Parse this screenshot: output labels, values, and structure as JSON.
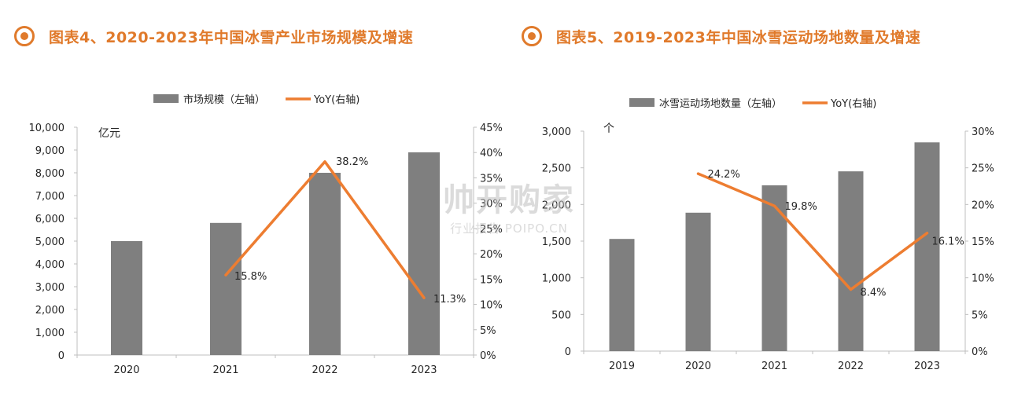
{
  "colors": {
    "accent": "#E07A2B",
    "bar": "#7F7F7F",
    "line": "#ED7D31",
    "axis": "#BFBFBF",
    "text": "#262626"
  },
  "watermark": {
    "brand": "帅开购家",
    "sub": "行业报告 POIPO.CN"
  },
  "chart_data": [
    {
      "type": "bar",
      "title": "图表4、2020-2023年中国冰雪产业市场规模及增速",
      "unit_label": "亿元",
      "categories": [
        "2020",
        "2021",
        "2022",
        "2023"
      ],
      "series": [
        {
          "name": "市场规模（左轴）",
          "type": "bar",
          "axis": "left",
          "values": [
            5000,
            5800,
            8000,
            8900
          ]
        },
        {
          "name": "YoY(右轴)",
          "type": "line",
          "axis": "right",
          "values": [
            null,
            15.8,
            38.2,
            11.3
          ],
          "data_labels": [
            "",
            "15.8%",
            "38.2%",
            "11.3%"
          ]
        }
      ],
      "y_left": {
        "min": 0,
        "max": 10000,
        "ticks": [
          "0",
          "1,000",
          "2,000",
          "3,000",
          "4,000",
          "5,000",
          "6,000",
          "7,000",
          "8,000",
          "9,000",
          "10,000"
        ]
      },
      "y_right": {
        "min": 0,
        "max": 45,
        "ticks": [
          "0%",
          "5%",
          "10%",
          "15%",
          "20%",
          "25%",
          "30%",
          "35%",
          "40%",
          "45%"
        ]
      },
      "legend": "top-center",
      "grid": false
    },
    {
      "type": "bar",
      "title": "图表5、2019-2023年中国冰雪运动场地数量及增速",
      "unit_label": "个",
      "categories": [
        "2019",
        "2020",
        "2021",
        "2022",
        "2023"
      ],
      "series": [
        {
          "name": "冰雪运动场地数量（左轴）",
          "type": "bar",
          "axis": "left",
          "values": [
            1530,
            1888,
            2262,
            2452,
            2847
          ]
        },
        {
          "name": "YoY(右轴)",
          "type": "line",
          "axis": "right",
          "values": [
            null,
            24.2,
            19.8,
            8.4,
            16.1
          ],
          "data_labels": [
            "",
            "24.2%",
            "19.8%",
            "8.4%",
            "16.1%"
          ]
        }
      ],
      "y_left": {
        "min": 0,
        "max": 3000,
        "ticks": [
          "0",
          "500",
          "1,000",
          "1,500",
          "2,000",
          "2,500",
          "3,000"
        ]
      },
      "y_right": {
        "min": 0,
        "max": 30,
        "ticks": [
          "0%",
          "5%",
          "10%",
          "15%",
          "20%",
          "25%",
          "30%"
        ]
      },
      "legend": "top-center",
      "grid": false
    }
  ]
}
